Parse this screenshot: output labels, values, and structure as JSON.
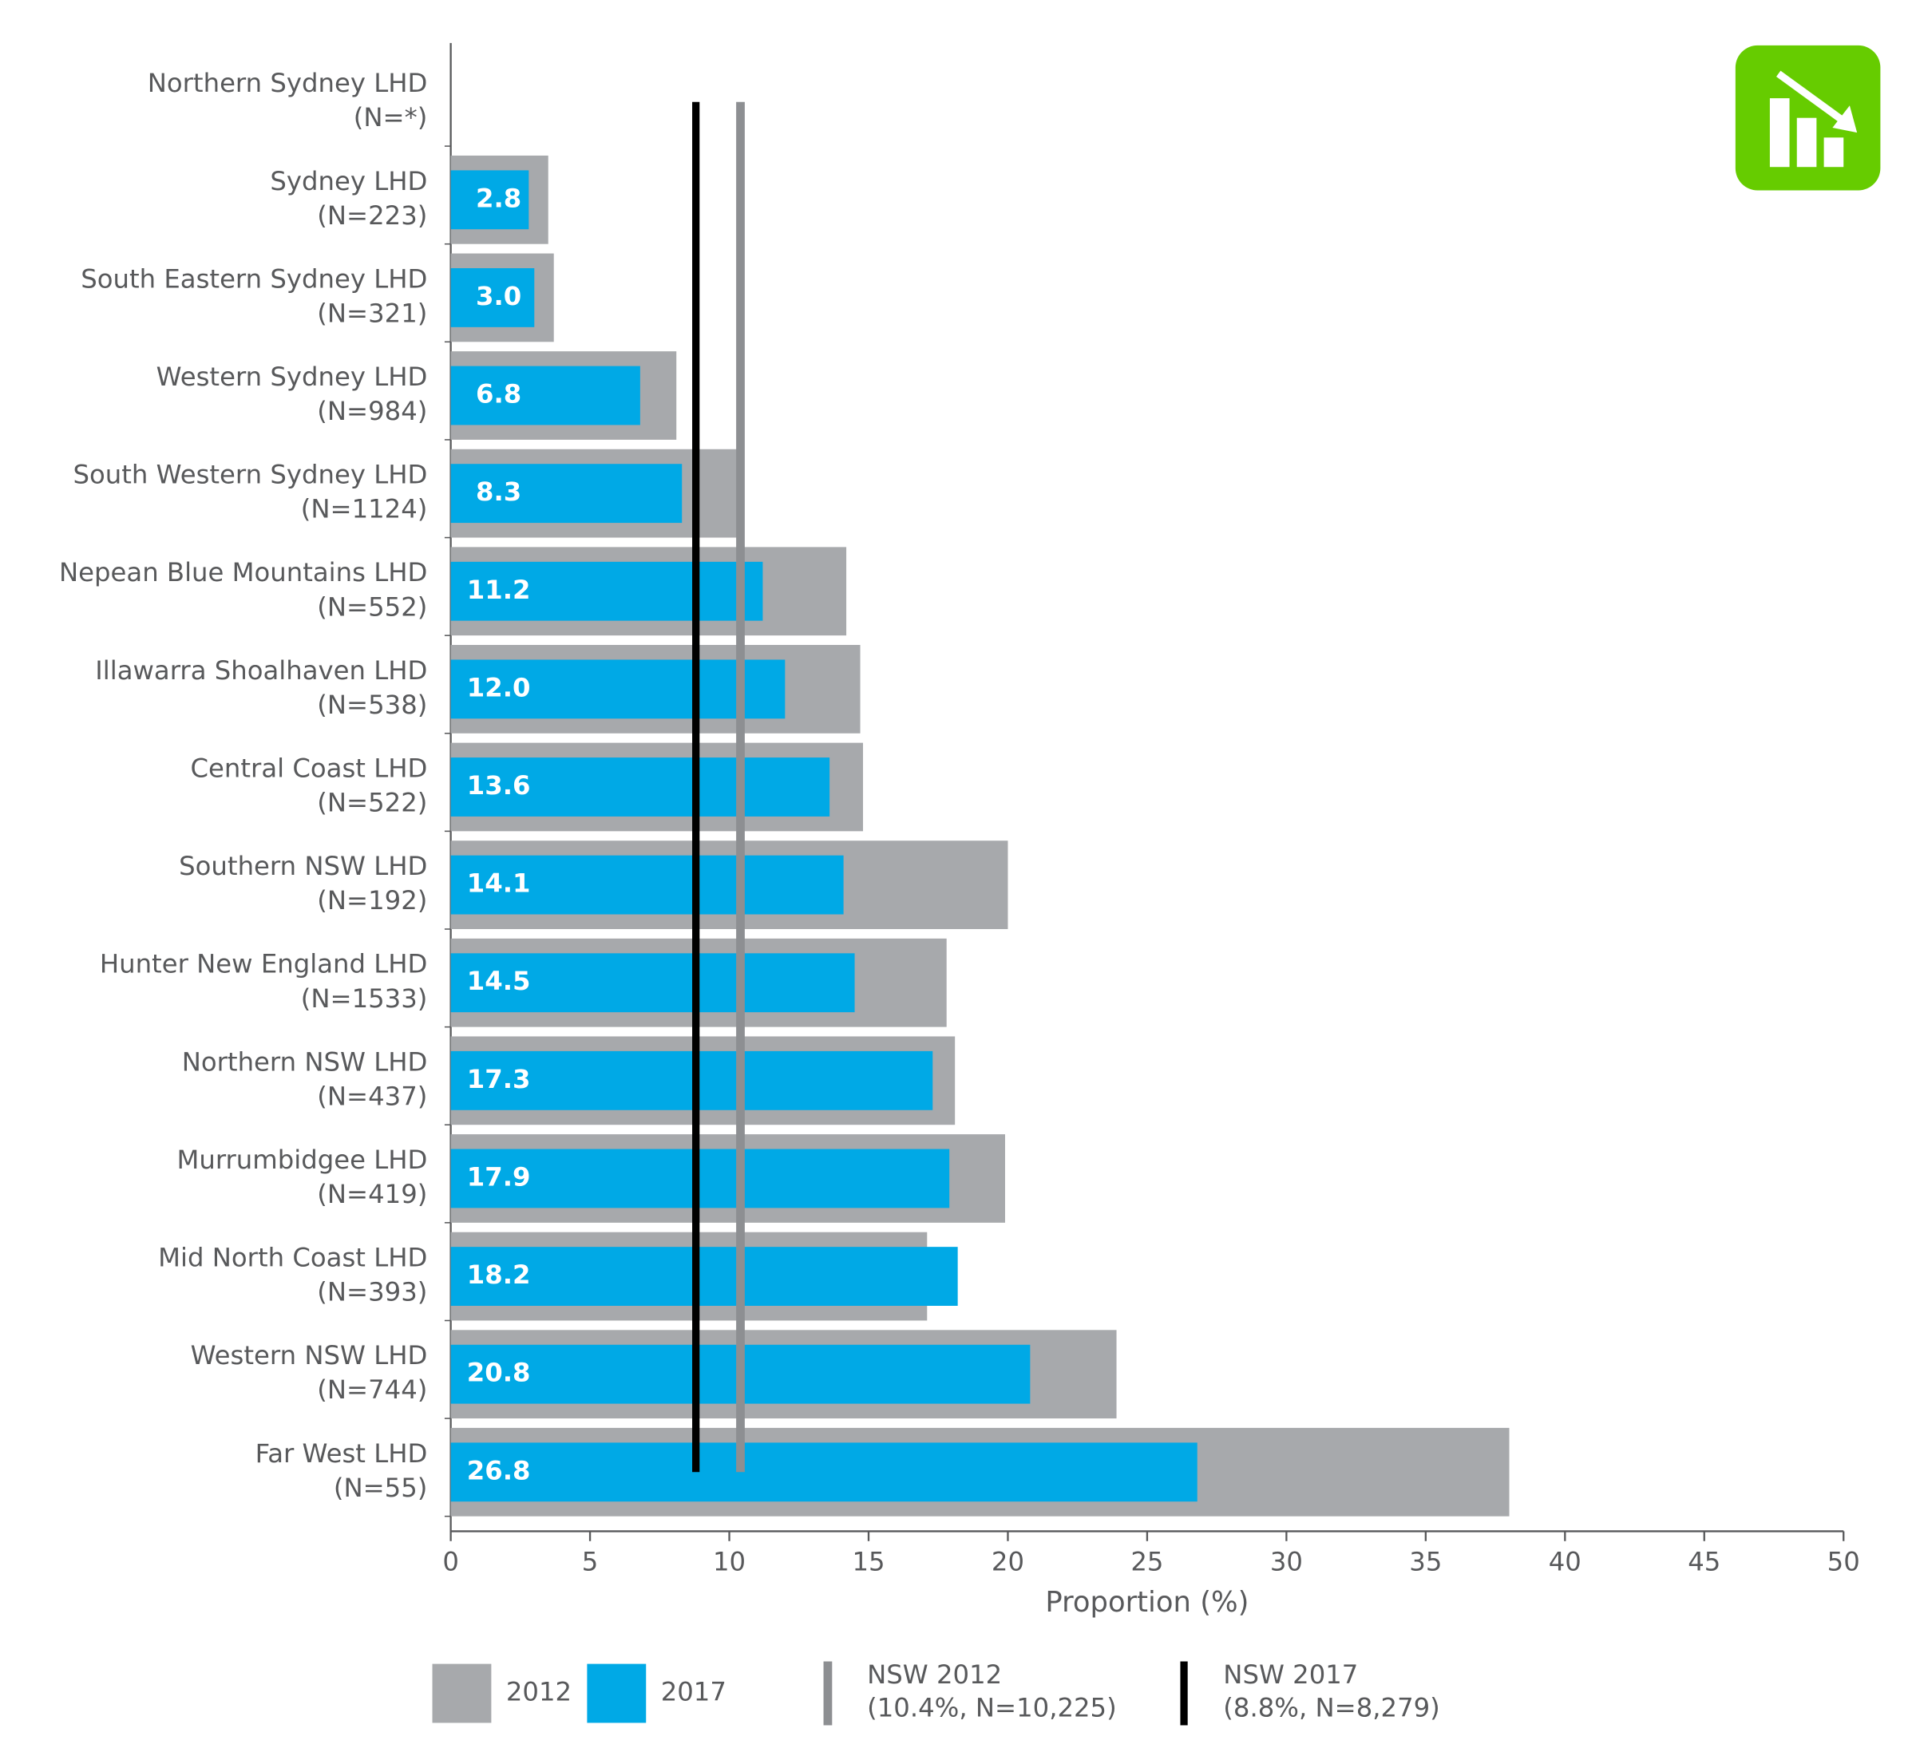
{
  "chart_data": {
    "type": "bar",
    "xlabel": "Proportion (%)",
    "categories": [
      "Northern Sydney LHD",
      "Sydney LHD",
      "South Eastern Sydney LHD",
      "Western Sydney LHD",
      "South Western Sydney LHD",
      "Nepean Blue Mountains LHD",
      "Illawarra Shoalhaven LHD",
      "Central Coast LHD",
      "Southern NSW LHD",
      "Hunter New England LHD",
      "Northern NSW LHD",
      "Murrumbidgee LHD",
      "Mid North Coast LHD",
      "Western NSW LHD",
      "Far West LHD"
    ],
    "category_notes": [
      "(N=*)",
      "(N=223)",
      "(N=321)",
      "(N=984)",
      "(N=1124)",
      "(N=552)",
      "(N=538)",
      "(N=522)",
      "(N=192)",
      "(N=1533)",
      "(N=437)",
      "(N=419)",
      "(N=393)",
      "(N=744)",
      "(N=55)"
    ],
    "series": [
      {
        "name": "2012",
        "color": "#a7a9ac",
        "values": [
          null,
          3.5,
          3.7,
          8.1,
          10.3,
          14.2,
          14.7,
          14.8,
          20.0,
          17.8,
          18.1,
          19.9,
          17.1,
          23.9,
          38.0
        ]
      },
      {
        "name": "2017",
        "color": "#00a9e6",
        "values": [
          null,
          2.8,
          3.0,
          6.8,
          8.3,
          11.2,
          12.0,
          13.6,
          14.1,
          14.5,
          17.3,
          17.9,
          18.2,
          20.8,
          26.8
        ],
        "value_labels": [
          null,
          "2.8",
          "3.0",
          "6.8",
          "8.3",
          "11.2",
          "12.0",
          "13.6",
          "14.1",
          "14.5",
          "17.3",
          "17.9",
          "18.2",
          "20.8",
          "26.8"
        ]
      }
    ],
    "reference_lines": [
      {
        "name": "NSW 2012",
        "note": "(10.4%, N=10,225)",
        "value": 10.4,
        "color": "#8d8f92"
      },
      {
        "name": "NSW 2017",
        "note": "(8.8%, N=8,279)",
        "value": 8.8,
        "color": "#000000"
      }
    ],
    "xlim": [
      0,
      50
    ],
    "xticks": [
      0,
      5,
      10,
      15,
      20,
      25,
      30,
      35,
      40,
      45,
      50
    ]
  }
}
